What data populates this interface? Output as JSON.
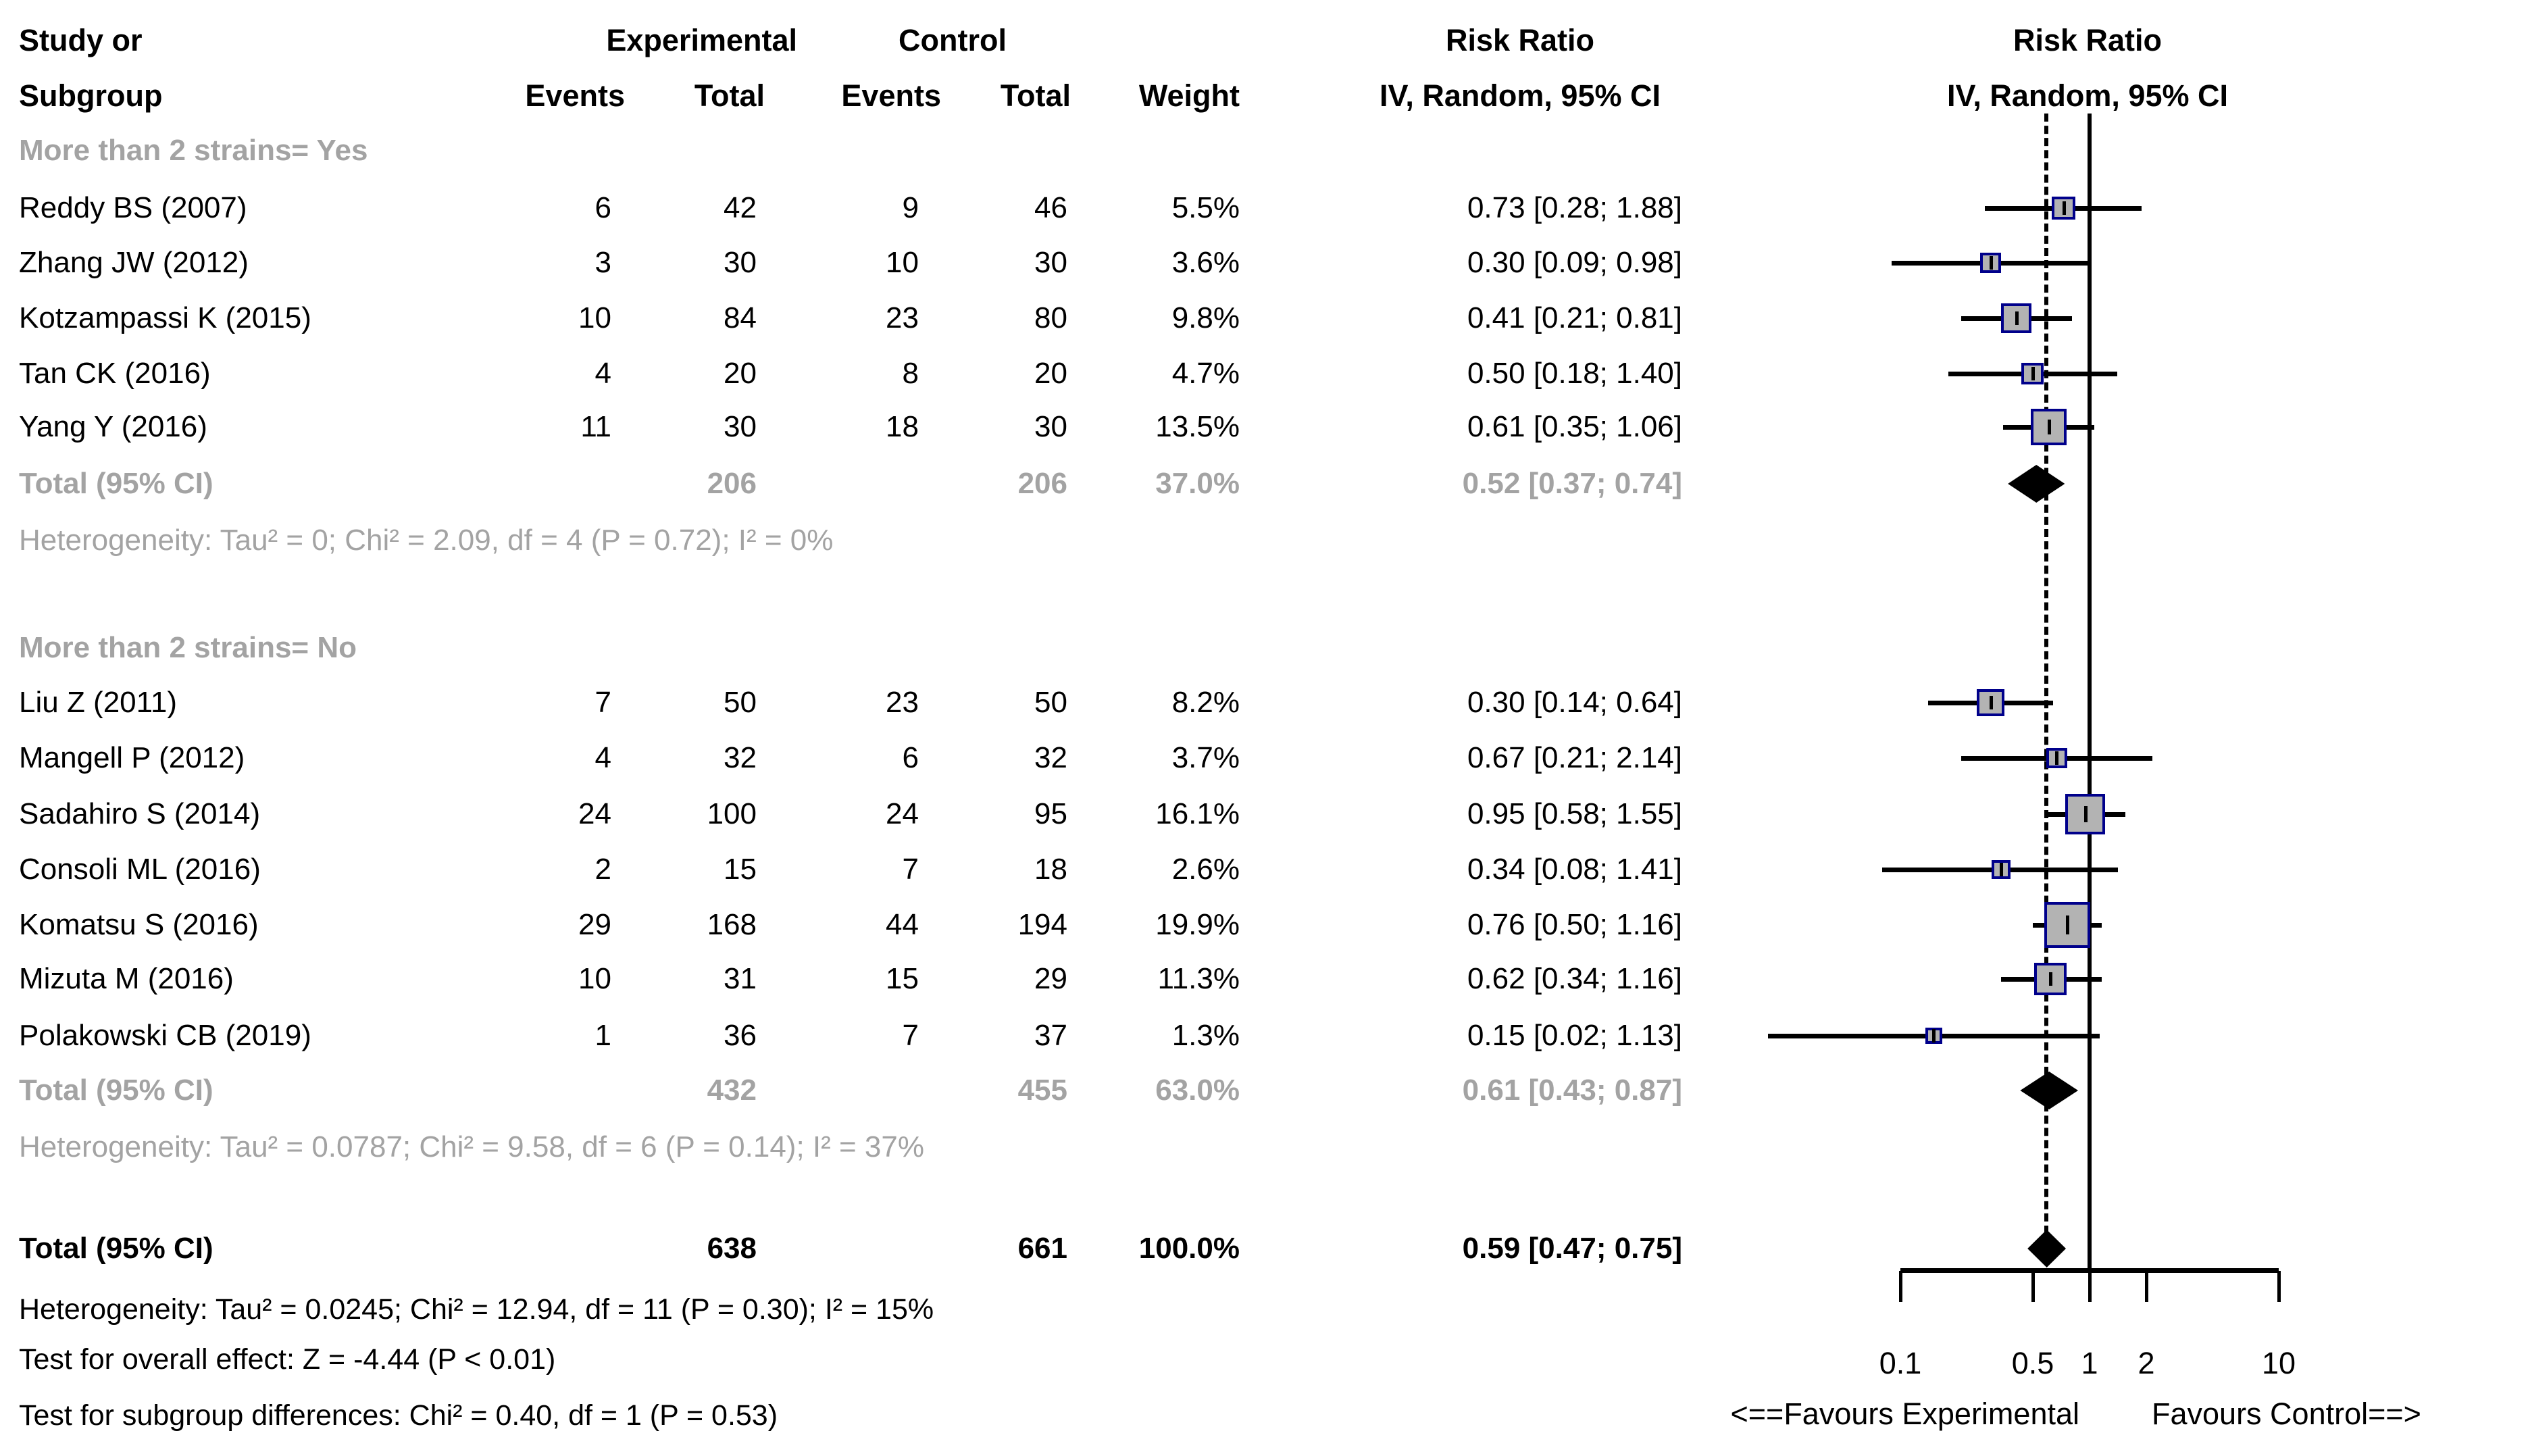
{
  "colors": {
    "square_fill": "#b3b3b3",
    "square_border": "#00008b",
    "line_black": "#000000",
    "subgroup_gray": "#a3a3a3",
    "background": "#ffffff"
  },
  "chart_data": {
    "type": "forest",
    "effect_measure": "Risk Ratio",
    "model": "IV, Random, 95% CI",
    "scale": "log10",
    "columns": {
      "study_line1": "Study or",
      "study_line2": "Subgroup",
      "exp_group": "Experimental",
      "ctrl_group": "Control",
      "events": "Events",
      "total": "Total",
      "weight": "Weight",
      "rr_line1": "Risk Ratio",
      "rr_line2": "IV, Random, 95% CI",
      "plot_line1": "Risk Ratio",
      "plot_line2": "IV, Random, 95% CI"
    },
    "groups": [
      {
        "label": "More than 2 strains= Yes",
        "studies": [
          {
            "name": "Reddy BS (2007)",
            "exp_events": "6",
            "exp_total": "42",
            "ctrl_events": "9",
            "ctrl_total": "46",
            "weight": "5.5%",
            "rr_text": "0.73 [0.28; 1.88]",
            "rr": 0.73,
            "ci_low": 0.28,
            "ci_high": 1.88,
            "weight_val": 5.5
          },
          {
            "name": "Zhang JW (2012)",
            "exp_events": "3",
            "exp_total": "30",
            "ctrl_events": "10",
            "ctrl_total": "30",
            "weight": "3.6%",
            "rr_text": "0.30 [0.09; 0.98]",
            "rr": 0.3,
            "ci_low": 0.09,
            "ci_high": 0.98,
            "weight_val": 3.6
          },
          {
            "name": "Kotzampassi K (2015)",
            "exp_events": "10",
            "exp_total": "84",
            "ctrl_events": "23",
            "ctrl_total": "80",
            "weight": "9.8%",
            "rr_text": "0.41 [0.21; 0.81]",
            "rr": 0.41,
            "ci_low": 0.21,
            "ci_high": 0.81,
            "weight_val": 9.8
          },
          {
            "name": "Tan CK (2016)",
            "exp_events": "4",
            "exp_total": "20",
            "ctrl_events": "8",
            "ctrl_total": "20",
            "weight": "4.7%",
            "rr_text": "0.50 [0.18; 1.40]",
            "rr": 0.5,
            "ci_low": 0.18,
            "ci_high": 1.4,
            "weight_val": 4.7
          },
          {
            "name": "Yang Y (2016)",
            "exp_events": "11",
            "exp_total": "30",
            "ctrl_events": "18",
            "ctrl_total": "30",
            "weight": "13.5%",
            "rr_text": "0.61 [0.35; 1.06]",
            "rr": 0.61,
            "ci_low": 0.35,
            "ci_high": 1.06,
            "weight_val": 13.5
          }
        ],
        "total": {
          "label": "Total (95% CI)",
          "exp_total": "206",
          "ctrl_total": "206",
          "weight": "37.0%",
          "rr_text": "0.52 [0.37; 0.74]",
          "rr": 0.52,
          "ci_low": 0.37,
          "ci_high": 0.74
        },
        "heterogeneity": "Heterogeneity: Tau² = 0; Chi² = 2.09, df = 4 (P = 0.72); I² = 0%"
      },
      {
        "label": "More than 2 strains= No",
        "studies": [
          {
            "name": "Liu Z (2011)",
            "exp_events": "7",
            "exp_total": "50",
            "ctrl_events": "23",
            "ctrl_total": "50",
            "weight": "8.2%",
            "rr_text": "0.30 [0.14; 0.64]",
            "rr": 0.3,
            "ci_low": 0.14,
            "ci_high": 0.64,
            "weight_val": 8.2
          },
          {
            "name": "Mangell P (2012)",
            "exp_events": "4",
            "exp_total": "32",
            "ctrl_events": "6",
            "ctrl_total": "32",
            "weight": "3.7%",
            "rr_text": "0.67 [0.21; 2.14]",
            "rr": 0.67,
            "ci_low": 0.21,
            "ci_high": 2.14,
            "weight_val": 3.7
          },
          {
            "name": "Sadahiro S (2014)",
            "exp_events": "24",
            "exp_total": "100",
            "ctrl_events": "24",
            "ctrl_total": "95",
            "weight": "16.1%",
            "rr_text": "0.95 [0.58; 1.55]",
            "rr": 0.95,
            "ci_low": 0.58,
            "ci_high": 1.55,
            "weight_val": 16.1
          },
          {
            "name": "Consoli ML (2016)",
            "exp_events": "2",
            "exp_total": "15",
            "ctrl_events": "7",
            "ctrl_total": "18",
            "weight": "2.6%",
            "rr_text": "0.34 [0.08; 1.41]",
            "rr": 0.34,
            "ci_low": 0.08,
            "ci_high": 1.41,
            "weight_val": 2.6
          },
          {
            "name": "Komatsu S (2016)",
            "exp_events": "29",
            "exp_total": "168",
            "ctrl_events": "44",
            "ctrl_total": "194",
            "weight": "19.9%",
            "rr_text": "0.76 [0.50; 1.16]",
            "rr": 0.76,
            "ci_low": 0.5,
            "ci_high": 1.16,
            "weight_val": 19.9
          },
          {
            "name": "Mizuta M (2016)",
            "exp_events": "10",
            "exp_total": "31",
            "ctrl_events": "15",
            "ctrl_total": "29",
            "weight": "11.3%",
            "rr_text": "0.62 [0.34; 1.16]",
            "rr": 0.62,
            "ci_low": 0.34,
            "ci_high": 1.16,
            "weight_val": 11.3
          },
          {
            "name": "Polakowski CB (2019)",
            "exp_events": "1",
            "exp_total": "36",
            "ctrl_events": "7",
            "ctrl_total": "37",
            "weight": "1.3%",
            "rr_text": "0.15 [0.02; 1.13]",
            "rr": 0.15,
            "ci_low": 0.02,
            "ci_high": 1.13,
            "weight_val": 1.3
          }
        ],
        "total": {
          "label": "Total (95% CI)",
          "exp_total": "432",
          "ctrl_total": "455",
          "weight": "63.0%",
          "rr_text": "0.61 [0.43; 0.87]",
          "rr": 0.61,
          "ci_low": 0.43,
          "ci_high": 0.87
        },
        "heterogeneity": "Heterogeneity: Tau² = 0.0787; Chi² = 9.58, df = 6 (P = 0.14); I² = 37%"
      }
    ],
    "overall": {
      "label": "Total (95% CI)",
      "exp_total": "638",
      "ctrl_total": "661",
      "weight": "100.0%",
      "rr_text": "0.59 [0.47; 0.75]",
      "rr": 0.59,
      "ci_low": 0.47,
      "ci_high": 0.75
    },
    "footer": {
      "heterogeneity": "Heterogeneity: Tau² = 0.0245; Chi² = 12.94, df = 11 (P = 0.30); I² = 15%",
      "test_overall": "Test for overall effect: Z = -4.44 (P < 0.01)",
      "test_subgroup": "Test for subgroup differences: Chi² = 0.40, df = 1 (P = 0.53)"
    },
    "axis": {
      "ticks": [
        "0.1",
        "0.5",
        "1",
        "2",
        "10"
      ],
      "tick_values": [
        0.1,
        0.5,
        1,
        2,
        10
      ],
      "range": [
        0.1,
        10
      ],
      "null_value": 1,
      "pooled_value": 0.59,
      "favours_left": "<==Favours Experimental",
      "favours_right": "Favours Control==>"
    }
  }
}
